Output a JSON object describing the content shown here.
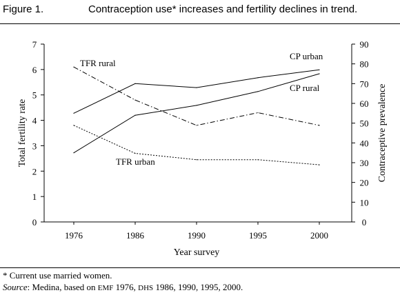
{
  "figure": {
    "label": "Figure 1.",
    "title": "Contraception use* increases and fertility declines in trend."
  },
  "footnotes": {
    "note": "* Current use married women.",
    "source_label": "Source",
    "source_pre": ": Medina, based on ",
    "source_emf": "EMF",
    "source_mid1": " 1976, ",
    "source_dhs": "DHS",
    "source_post": " 1986, 1990, 1995, 2000."
  },
  "chart_data": {
    "type": "line",
    "x": [
      1976,
      1986,
      1990,
      1995,
      2000
    ],
    "xlabel": "Year survey",
    "ylabel_left": "Total fertility rate",
    "ylabel_right": "Contraceptive prevalence",
    "ylim_left": [
      0,
      7
    ],
    "ylim_right": [
      0,
      90
    ],
    "yticks_left": [
      0,
      1,
      2,
      3,
      4,
      5,
      6,
      7
    ],
    "yticks_right": [
      0,
      10,
      20,
      30,
      40,
      50,
      60,
      70,
      80,
      90
    ],
    "grid": false,
    "series": [
      {
        "name": "TFR rural",
        "axis": "left",
        "style": "dashdot",
        "values": [
          6.1,
          4.8,
          3.8,
          4.3,
          3.8
        ]
      },
      {
        "name": "TFR urban",
        "axis": "left",
        "style": "dotted",
        "values": [
          3.8,
          2.7,
          2.45,
          2.45,
          2.25
        ]
      },
      {
        "name": "CP urban",
        "axis": "right",
        "style": "solid",
        "values": [
          55,
          70,
          68,
          73,
          77
        ]
      },
      {
        "name": "CP rural",
        "axis": "right",
        "style": "solid",
        "values": [
          35,
          54,
          59,
          66,
          75
        ]
      }
    ]
  }
}
